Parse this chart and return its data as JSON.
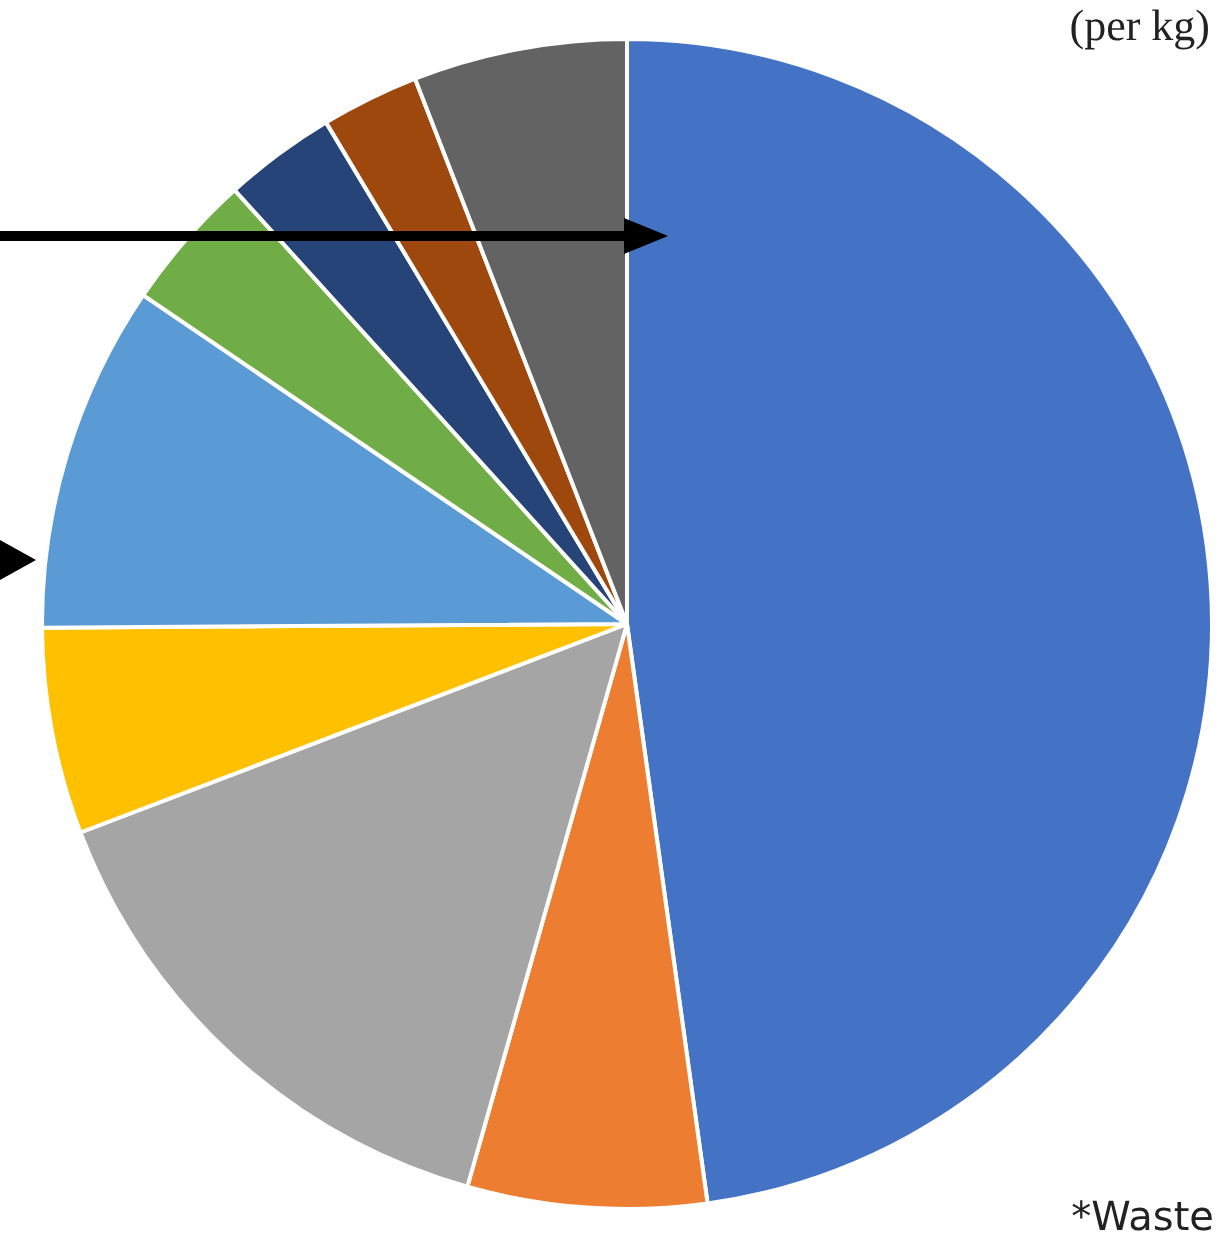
{
  "chart_data": {
    "type": "pie",
    "categories": [
      null,
      null,
      null,
      null,
      null,
      null,
      null,
      null,
      null
    ],
    "values": [
      47.8,
      6.6,
      14.8,
      5.7,
      9.6,
      3.8,
      3.1,
      2.7,
      5.9
    ],
    "colors": [
      "#4472c4",
      "#ed7d31",
      "#a5a5a5",
      "#ffc000",
      "#5b9bd5",
      "#70ad47",
      "#264478",
      "#9e480e",
      "#636363"
    ],
    "annotations": [
      "(per kg)",
      "*Waste"
    ],
    "legend": false
  }
}
